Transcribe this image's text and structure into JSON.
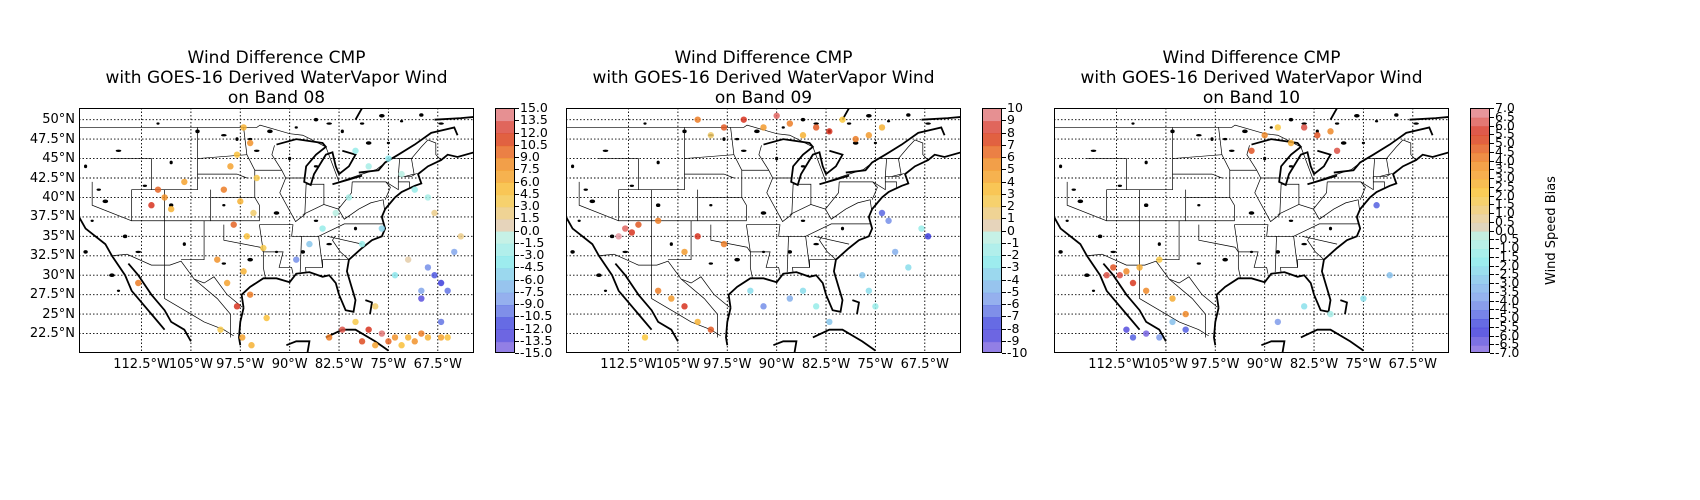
{
  "chart_data": [
    {
      "type": "scatter",
      "title_lines": [
        "Wind Difference CMP",
        "with GOES-16 Derived WaterVapor Wind",
        "on Band 08"
      ],
      "xticks": [
        "112.5°W",
        "105°W",
        "97.5°W",
        "90°W",
        "82.5°W",
        "75°W",
        "67.5°W"
      ],
      "yticks": [
        "50°N",
        "47.5°N",
        "45°N",
        "42.5°N",
        "40°N",
        "37.5°N",
        "35°N",
        "32.5°N",
        "30°N",
        "27.5°N",
        "25°N",
        "22.5°N"
      ],
      "xlim": [
        -122,
        -62
      ],
      "ylim": [
        20,
        51.5
      ],
      "xtick_values": [
        -112.5,
        -105,
        -97.5,
        -90,
        -82.5,
        -75,
        -67.5
      ],
      "ytick_values": [
        50,
        47.5,
        45,
        42.5,
        40,
        37.5,
        35,
        32.5,
        30,
        27.5,
        25,
        22.5
      ],
      "grid": true,
      "colorbar": {
        "vmin": -15,
        "vmax": 15,
        "label": "",
        "ticks": [
          "15.0",
          "13.5",
          "12.0",
          "10.5",
          "9.0",
          "7.5",
          "6.0",
          "4.5",
          "3.0",
          "1.5",
          "0.0",
          "-1.5",
          "-3.0",
          "-4.5",
          "-6.0",
          "-7.5",
          "-9.0",
          "-10.5",
          "-12.0",
          "-13.5",
          "-15.0"
        ]
      },
      "series": [
        {
          "x": [
            -97,
            -96,
            -98,
            -99,
            -95,
            -100,
            -97.5,
            -95.5,
            -98.5,
            -96.5,
            -94,
            -101,
            -97,
            -99.5,
            -96,
            -98,
            -93.5,
            -100.5,
            -97.2,
            -95.8
          ],
          "y": [
            49,
            47,
            45.5,
            44,
            42.5,
            41,
            39.5,
            38,
            36.5,
            35,
            33.5,
            32,
            30.5,
            29,
            27.5,
            26,
            24.5,
            23,
            22,
            21
          ],
          "value": [
            6,
            8,
            5,
            7,
            4,
            9,
            6,
            3,
            10,
            5,
            4,
            8,
            6,
            7,
            9,
            12,
            5,
            4,
            7,
            6
          ]
        },
        {
          "x": [
            -110,
            -109,
            -111,
            -108,
            -106,
            -113
          ],
          "y": [
            41,
            40,
            39,
            38.5,
            42,
            29
          ],
          "value": [
            10,
            8,
            12,
            6,
            7,
            9
          ]
        },
        {
          "x": [
            -80,
            -78,
            -75,
            -73,
            -71,
            -69,
            -68,
            -76,
            -79,
            -72,
            -74,
            -70,
            -77,
            -67,
            -66,
            -81,
            -83,
            -85,
            -87,
            -89
          ],
          "y": [
            46,
            44,
            45,
            43,
            41,
            40,
            38,
            36,
            34,
            32,
            30,
            28,
            26,
            24,
            22,
            40,
            38,
            36,
            34,
            32
          ],
          "value": [
            -3,
            -2,
            -4,
            -1,
            -3,
            -2,
            2,
            -5,
            -3,
            1,
            -4,
            -8,
            3,
            -10,
            5,
            -2,
            -1,
            -3,
            -6,
            -9
          ]
        },
        {
          "x": [
            -78,
            -76,
            -74,
            -72,
            -70,
            -79,
            -77,
            -75,
            -73,
            -71,
            -69,
            -67,
            -80,
            -82,
            -84
          ],
          "y": [
            23,
            22.5,
            22,
            22,
            22.5,
            21.5,
            21,
            21.5,
            21,
            21.5,
            22,
            22,
            24,
            23,
            22
          ],
          "value": [
            12,
            14,
            8,
            6,
            9,
            11,
            7,
            10,
            5,
            8,
            6,
            7,
            4,
            13,
            9
          ]
        },
        {
          "x": [
            -68,
            -67,
            -66,
            -69,
            -70,
            -65,
            -64
          ],
          "y": [
            30,
            29,
            28,
            31,
            27,
            33,
            35
          ],
          "value": [
            -11,
            -12,
            -10,
            -9,
            -13,
            -8,
            2
          ]
        }
      ]
    },
    {
      "type": "scatter",
      "title_lines": [
        "Wind Difference CMP",
        "with GOES-16 Derived WaterVapor Wind",
        "on Band 09"
      ],
      "xticks": [
        "112.5°W",
        "105°W",
        "97.5°W",
        "90°W",
        "82.5°W",
        "75°W",
        "67.5°W"
      ],
      "yticks": [],
      "xlim": [
        -122,
        -62
      ],
      "ylim": [
        20,
        51.5
      ],
      "xtick_values": [
        -112.5,
        -105,
        -97.5,
        -90,
        -82.5,
        -75,
        -67.5
      ],
      "ytick_values": [
        50,
        47.5,
        45,
        42.5,
        40,
        37.5,
        35,
        32.5,
        30,
        27.5,
        25,
        22.5
      ],
      "grid": true,
      "colorbar": {
        "vmin": -10,
        "vmax": 10,
        "label": "",
        "ticks": [
          "10",
          "9",
          "8",
          "7",
          "6",
          "5",
          "4",
          "3",
          "2",
          "1",
          "0",
          "-1",
          "-2",
          "-3",
          "-4",
          "-5",
          "-6",
          "-7",
          "-8",
          "-9",
          "-10"
        ]
      },
      "series": [
        {
          "x": [
            -95,
            -92,
            -90,
            -88,
            -86,
            -84,
            -82,
            -80,
            -78,
            -76,
            -74,
            -98,
            -100,
            -102
          ],
          "y": [
            50,
            49,
            50.5,
            49.5,
            48,
            49,
            48.5,
            50,
            47.5,
            48,
            49,
            49,
            48,
            50
          ],
          "value": [
            8,
            5,
            9,
            6,
            4,
            7,
            8,
            3,
            6,
            5,
            4,
            7,
            2,
            6
          ]
        },
        {
          "x": [
            -113,
            -112,
            -114,
            -111,
            -108,
            -104,
            -102,
            -98
          ],
          "y": [
            36,
            35.5,
            35,
            36.5,
            37,
            33,
            35,
            34
          ],
          "value": [
            9,
            8,
            10,
            7,
            6,
            5,
            8,
            6
          ]
        },
        {
          "x": [
            -74,
            -73,
            -72,
            -70,
            -68,
            -67,
            -77,
            -76,
            -75,
            -88,
            -86,
            -84,
            -82,
            -92,
            -94
          ],
          "y": [
            38,
            37,
            33,
            31,
            36,
            35,
            30,
            28,
            26,
            27,
            28,
            26,
            24,
            26,
            28
          ],
          "value": [
            -7,
            -6,
            -5,
            -3,
            -2,
            -8,
            -4,
            -3,
            -2,
            -5,
            -3,
            -2,
            -4,
            -6,
            -3
          ]
        },
        {
          "x": [
            -108,
            -106,
            -104,
            -102,
            -100,
            -110
          ],
          "y": [
            28,
            27,
            26,
            24,
            23,
            22
          ],
          "value": [
            6,
            5,
            8,
            4,
            7,
            3
          ]
        }
      ]
    },
    {
      "type": "scatter",
      "title_lines": [
        "Wind Difference CMP",
        "with GOES-16 Derived WaterVapor Wind",
        "on Band 10"
      ],
      "xticks": [
        "112.5°W",
        "105°W",
        "97.5°W",
        "90°W",
        "82.5°W",
        "75°W",
        "67.5°W"
      ],
      "yticks": [],
      "xlim": [
        -122,
        -62
      ],
      "ylim": [
        20,
        51.5
      ],
      "xtick_values": [
        -112.5,
        -105,
        -97.5,
        -90,
        -82.5,
        -75,
        -67.5
      ],
      "ytick_values": [
        50,
        47.5,
        45,
        42.5,
        40,
        37.5,
        35,
        32.5,
        30,
        27.5,
        25,
        22.5
      ],
      "grid": true,
      "colorbar": {
        "vmin": -7,
        "vmax": 7,
        "label": "Wind Speed Bias",
        "ticks": [
          "7.0",
          "6.5",
          "6.0",
          "5.5",
          "5.0",
          "4.5",
          "4.0",
          "3.5",
          "3.0",
          "2.5",
          "2.0",
          "1.5",
          "1.0",
          "0.5",
          "0.0",
          "-0.5",
          "-1.0",
          "-1.5",
          "-2.0",
          "-2.5",
          "-3.0",
          "-3.5",
          "-4.0",
          "-4.5",
          "-5.0",
          "-5.5",
          "-6.0",
          "-6.5",
          "-7.0"
        ]
      },
      "series": [
        {
          "x": [
            -84,
            -82,
            -80,
            -86,
            -88,
            -79,
            -90,
            -92
          ],
          "y": [
            49,
            48,
            48.5,
            47,
            49,
            46,
            48,
            46
          ],
          "value": [
            6,
            5,
            4,
            3,
            2,
            6,
            4,
            5
          ]
        },
        {
          "x": [
            -113,
            -112,
            -111,
            -110,
            -109,
            -114,
            -108,
            -106,
            -104,
            -102
          ],
          "y": [
            31,
            30,
            30.5,
            29,
            31,
            30,
            28,
            32,
            27,
            25
          ],
          "value": [
            5,
            6,
            4,
            5.5,
            3,
            6,
            4,
            2,
            3,
            4
          ]
        },
        {
          "x": [
            -111,
            -110,
            -108,
            -106,
            -104,
            -102
          ],
          "y": [
            23,
            22,
            22.5,
            22,
            24,
            23
          ],
          "value": [
            -6,
            -5,
            -6.5,
            -4,
            -3,
            -5
          ]
        },
        {
          "x": [
            -73,
            -75,
            -71,
            -80,
            -88,
            -84
          ],
          "y": [
            39,
            27,
            30,
            25,
            24,
            26
          ],
          "value": [
            -5,
            -2,
            -3,
            -1,
            -4,
            -2
          ]
        }
      ]
    }
  ]
}
